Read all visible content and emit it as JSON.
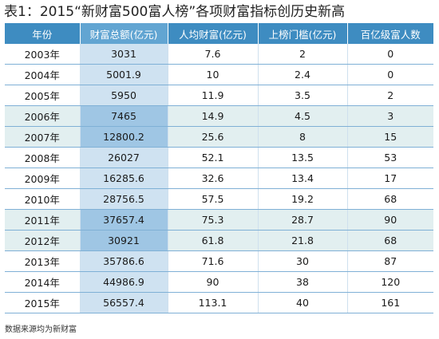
{
  "title": "表1：2015“新财富500富人榜”各项财富指标创历史新高",
  "headers": [
    "年份",
    "财富总额(亿元)",
    "人均财富(亿元)",
    "上榜门槛(亿元)",
    "百亿级富人数"
  ],
  "rows": [
    [
      "2003年",
      "3031",
      "7.6",
      "2",
      "0"
    ],
    [
      "2004年",
      "5001.9",
      "10",
      "2.4",
      "0"
    ],
    [
      "2005年",
      "5950",
      "11.9",
      "3.5",
      "2"
    ],
    [
      "2006年",
      "7465",
      "14.9",
      "4.5",
      "3"
    ],
    [
      "2007年",
      "12800.2",
      "25.6",
      "8",
      "15"
    ],
    [
      "2008年",
      "26027",
      "52.1",
      "13.5",
      "53"
    ],
    [
      "2009年",
      "16285.6",
      "32.6",
      "13.4",
      "17"
    ],
    [
      "2010年",
      "28756.5",
      "57.5",
      "19.2",
      "68"
    ],
    [
      "2011年",
      "37657.4",
      "75.3",
      "28.7",
      "90"
    ],
    [
      "2012年",
      "30921",
      "61.8",
      "21.8",
      "68"
    ],
    [
      "2013年",
      "35786.6",
      "71.6",
      "30",
      "87"
    ],
    [
      "2014年",
      "44986.9",
      "90",
      "38",
      "120"
    ],
    [
      "2015年",
      "56557.4",
      "113.1",
      "40",
      "161"
    ]
  ],
  "shaded_rows": [
    3,
    4,
    8,
    9
  ],
  "source": "数据来源均为新财富",
  "colors": {
    "header": "#3e8cc1",
    "header_highlight": "#62a5d2",
    "column_highlight": "#cfe2f1",
    "row_shade": "#e2eff0",
    "row_shade_highlight": "#9fc6e4"
  }
}
